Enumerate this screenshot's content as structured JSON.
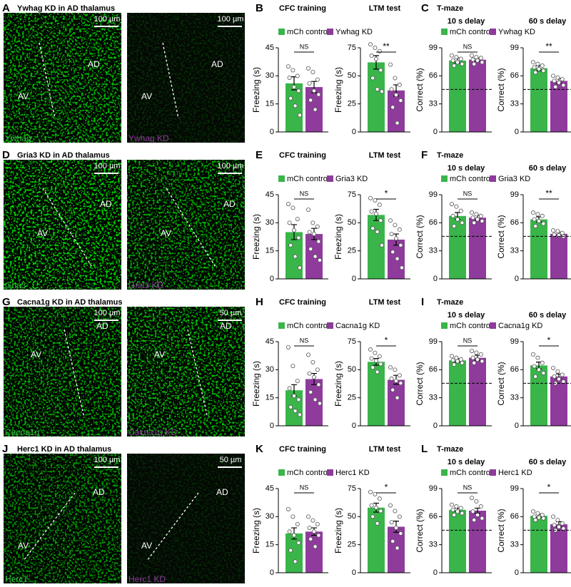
{
  "colors": [
    "#39b54a",
    "#8e3b9b"
  ],
  "rows": [
    {
      "letter": "A",
      "title": "Ywhag KD in AD thalamus",
      "cfc_letter": "B",
      "tmaze_letter": "C",
      "tmaze_title": "T-maze",
      "legend": [
        "mCh control",
        "Ywhag KD"
      ],
      "images": [
        {
          "regions": [
            "AV",
            "AD"
          ],
          "scale": "100 µm",
          "label": "Ywhag"
        },
        {
          "regions": [
            "AV",
            "AD"
          ],
          "scale": "100 µm",
          "label": "Ywhag KD"
        }
      ]
    },
    {
      "letter": "D",
      "title": "Gria3 KD in AD thalamus",
      "cfc_letter": "E",
      "tmaze_letter": "F",
      "tmaze_title": "T-maze",
      "legend": [
        "mCh control",
        "Gria3 KD"
      ],
      "images": [
        {
          "regions": [
            "AV",
            "AD"
          ],
          "scale": "100 µm",
          "label": "Gria3"
        },
        {
          "regions": [
            "AV",
            "AD"
          ],
          "scale": "100 µm",
          "label": "Gria3 KD"
        }
      ]
    },
    {
      "letter": "G",
      "title": "Cacna1g KD in AD thalamus",
      "cfc_letter": "H",
      "tmaze_letter": "I",
      "tmaze_title": "T-maze",
      "legend": [
        "mCh control",
        "Cacna1g KD"
      ],
      "images": [
        {
          "regions": [
            "AV",
            "AD"
          ],
          "scale": "100 µm",
          "label": "Cacna1g"
        },
        {
          "regions": [
            "AV",
            "AD"
          ],
          "scale": "50 µm",
          "label": "Cacna1g KD"
        }
      ]
    },
    {
      "letter": "J",
      "title": "Herc1 KD in AD thalamus",
      "cfc_letter": "K",
      "tmaze_letter": "L",
      "tmaze_title": "T-maze",
      "legend": [
        "mCh control",
        "Herc1 KD"
      ],
      "images": [
        {
          "regions": [
            "AV",
            "AD"
          ],
          "scale": "100 µm",
          "label": "Herc1"
        },
        {
          "regions": [
            "AV",
            "AD"
          ],
          "scale": "50 µm",
          "label": "Herc1 KD"
        }
      ]
    }
  ],
  "chart_data": [
    {
      "type": "bar",
      "title": "CFC training",
      "ylabel": "Freezing (s)",
      "values": [
        26,
        24
      ],
      "errors": [
        3.5,
        3
      ],
      "points": [
        [
          35,
          33,
          30,
          29,
          24,
          22,
          18,
          14,
          9
        ],
        [
          34,
          32,
          28,
          26,
          22,
          20,
          17,
          12
        ]
      ],
      "ylim": [
        0,
        45
      ],
      "yticks": [
        0,
        15,
        30,
        45
      ],
      "significance": "NS"
    },
    {
      "type": "bar",
      "title": "LTM test",
      "ylabel": "Freezing (s)",
      "values": [
        62,
        37
      ],
      "errors": [
        6,
        5
      ],
      "points": [
        [
          78,
          75,
          72,
          68,
          65,
          55,
          48,
          38,
          36
        ],
        [
          60,
          48,
          42,
          38,
          33,
          28,
          22,
          8
        ]
      ],
      "ylim": [
        0,
        75
      ],
      "yticks": [
        0,
        25,
        50,
        75
      ],
      "significance": "**"
    },
    {
      "type": "bar",
      "title": "10 s delay",
      "ylabel": "Correct (%)",
      "values": [
        84,
        85
      ],
      "errors": [
        3,
        2
      ],
      "points": [
        [
          90,
          88,
          86,
          84,
          82,
          80,
          78
        ],
        [
          90,
          88,
          87,
          85,
          84,
          82,
          80
        ]
      ],
      "ylim": [
        0,
        99
      ],
      "yticks": [
        0,
        33,
        66,
        99
      ],
      "chance": 50,
      "significance": "NS"
    },
    {
      "type": "bar",
      "title": "60 s delay",
      "ylabel": "Correct (%)",
      "values": [
        75,
        60
      ],
      "errors": [
        3,
        3
      ],
      "points": [
        [
          82,
          80,
          78,
          76,
          74,
          72,
          70
        ],
        [
          66,
          64,
          62,
          60,
          58,
          55,
          53
        ]
      ],
      "ylim": [
        0,
        99
      ],
      "yticks": [
        0,
        33,
        66,
        99
      ],
      "chance": 50,
      "significance": "**"
    },
    {
      "type": "bar",
      "title": "CFC training",
      "ylabel": "Freezing (s)",
      "values": [
        25,
        24
      ],
      "errors": [
        4,
        3
      ],
      "points": [
        [
          40,
          38,
          32,
          30,
          26,
          22,
          18,
          12,
          6
        ],
        [
          37,
          30,
          28,
          25,
          24,
          20,
          16,
          12,
          10
        ]
      ],
      "ylim": [
        0,
        45
      ],
      "yticks": [
        0,
        15,
        30,
        45
      ],
      "significance": "NS"
    },
    {
      "type": "bar",
      "title": "LTM test",
      "ylabel": "Freezing (s)",
      "values": [
        57,
        35
      ],
      "errors": [
        5,
        5
      ],
      "points": [
        [
          72,
          70,
          66,
          60,
          58,
          52,
          45,
          42,
          30
        ],
        [
          52,
          48,
          44,
          40,
          36,
          30,
          24,
          18,
          10
        ]
      ],
      "ylim": [
        0,
        75
      ],
      "yticks": [
        0,
        25,
        50,
        75
      ],
      "significance": "*"
    },
    {
      "type": "bar",
      "title": "10 s delay",
      "ylabel": "Correct (%)",
      "values": [
        74,
        72
      ],
      "errors": [
        4,
        3
      ],
      "points": [
        [
          88,
          85,
          80,
          74,
          70,
          66,
          62
        ],
        [
          78,
          76,
          74,
          72,
          70,
          68,
          66
        ]
      ],
      "ylim": [
        0,
        99
      ],
      "yticks": [
        0,
        33,
        66,
        99
      ],
      "chance": 50,
      "significance": "NS"
    },
    {
      "type": "bar",
      "title": "60 s delay",
      "ylabel": "Correct (%)",
      "values": [
        70,
        53
      ],
      "errors": [
        3,
        2
      ],
      "points": [
        [
          78,
          76,
          74,
          70,
          68,
          65,
          62
        ],
        [
          57,
          56,
          54,
          52,
          51,
          50
        ]
      ],
      "ylim": [
        0,
        99
      ],
      "yticks": [
        0,
        33,
        66,
        99
      ],
      "chance": 50,
      "significance": "**"
    },
    {
      "type": "bar",
      "title": "CFC training",
      "ylabel": "Freezing (s)",
      "values": [
        19,
        25
      ],
      "errors": [
        3,
        3
      ],
      "points": [
        [
          42,
          32,
          24,
          20,
          16,
          14,
          10,
          8,
          6
        ],
        [
          38,
          34,
          30,
          28,
          26,
          22,
          18,
          14,
          12
        ]
      ],
      "ylim": [
        0,
        45
      ],
      "yticks": [
        0,
        15,
        30,
        45
      ],
      "significance": "NS"
    },
    {
      "type": "bar",
      "title": "LTM test",
      "ylabel": "Freezing (s)",
      "values": [
        57,
        41
      ],
      "errors": [
        3,
        4
      ],
      "points": [
        [
          68,
          65,
          62,
          60,
          58,
          55,
          52,
          48
        ],
        [
          52,
          50,
          45,
          42,
          40,
          38,
          32,
          25
        ]
      ],
      "ylim": [
        0,
        75
      ],
      "yticks": [
        0,
        25,
        50,
        75
      ],
      "significance": "*"
    },
    {
      "type": "bar",
      "title": "10 s delay",
      "ylabel": "Correct (%)",
      "values": [
        77,
        80
      ],
      "errors": [
        2,
        3
      ],
      "points": [
        [
          82,
          80,
          78,
          77,
          76,
          74,
          72
        ],
        [
          88,
          86,
          84,
          80,
          78,
          76,
          74
        ]
      ],
      "ylim": [
        0,
        99
      ],
      "yticks": [
        0,
        33,
        66,
        99
      ],
      "chance": 50,
      "significance": "NS"
    },
    {
      "type": "bar",
      "title": "60 s delay",
      "ylabel": "Correct (%)",
      "values": [
        71,
        58
      ],
      "errors": [
        4,
        3
      ],
      "points": [
        [
          84,
          80,
          74,
          70,
          66,
          62,
          58
        ],
        [
          68,
          64,
          60,
          58,
          55,
          52,
          50
        ]
      ],
      "ylim": [
        0,
        99
      ],
      "yticks": [
        0,
        33,
        66,
        99
      ],
      "chance": 50,
      "significance": "*"
    },
    {
      "type": "bar",
      "title": "CFC training",
      "ylabel": "Freezing (s)",
      "values": [
        21,
        22
      ],
      "errors": [
        3,
        2
      ],
      "points": [
        [
          34,
          30,
          26,
          22,
          20,
          16,
          12,
          6
        ],
        [
          30,
          28,
          26,
          24,
          22,
          20,
          18,
          14
        ]
      ],
      "ylim": [
        0,
        45
      ],
      "yticks": [
        0,
        15,
        30,
        45
      ],
      "significance": "NS"
    },
    {
      "type": "bar",
      "title": "LTM test",
      "ylabel": "Freezing (s)",
      "values": [
        58,
        41
      ],
      "errors": [
        4,
        5
      ],
      "points": [
        [
          72,
          70,
          66,
          60,
          58,
          55,
          50,
          44
        ],
        [
          60,
          55,
          50,
          45,
          40,
          35,
          28,
          22
        ]
      ],
      "ylim": [
        0,
        75
      ],
      "yticks": [
        0,
        25,
        50,
        75
      ],
      "significance": "*"
    },
    {
      "type": "bar",
      "title": "10 s delay",
      "ylabel": "Correct (%)",
      "values": [
        74,
        73
      ],
      "errors": [
        2,
        3
      ],
      "points": [
        [
          80,
          78,
          76,
          74,
          72,
          70,
          68
        ],
        [
          88,
          84,
          78,
          72,
          68,
          64,
          62
        ]
      ],
      "ylim": [
        0,
        99
      ],
      "yticks": [
        0,
        33,
        66,
        99
      ],
      "chance": 50,
      "significance": "NS"
    },
    {
      "type": "bar",
      "title": "60 s delay",
      "ylabel": "Correct (%)",
      "values": [
        67,
        57
      ],
      "errors": [
        2,
        3
      ],
      "points": [
        [
          72,
          70,
          68,
          66,
          65,
          64,
          62
        ],
        [
          66,
          62,
          58,
          56,
          54,
          52,
          50
        ]
      ],
      "ylim": [
        0,
        99
      ],
      "yticks": [
        0,
        33,
        66,
        99
      ],
      "chance": 50,
      "significance": "*"
    }
  ]
}
